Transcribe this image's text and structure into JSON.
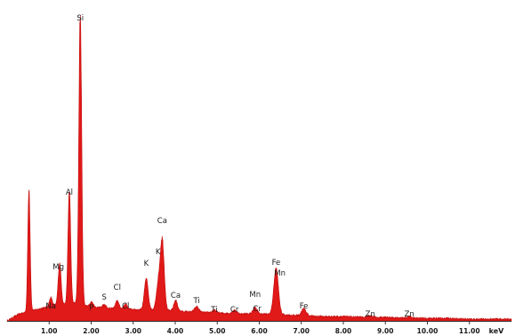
{
  "chart_data": {
    "type": "area",
    "title": "",
    "xlabel": "keV",
    "ylabel": "",
    "xlim": [
      0.0,
      12.0
    ],
    "ylim": [
      0,
      345
    ],
    "grid": false,
    "legend": "none",
    "color": "#e01919",
    "x_ticks": [
      {
        "value": 1.0,
        "label": "1.00"
      },
      {
        "value": 2.0,
        "label": "2.00"
      },
      {
        "value": 3.0,
        "label": "3.00"
      },
      {
        "value": 4.0,
        "label": "4.00"
      },
      {
        "value": 5.0,
        "label": "5.00"
      },
      {
        "value": 6.0,
        "label": "6.00"
      },
      {
        "value": 7.0,
        "label": "7.00"
      },
      {
        "value": 8.0,
        "label": "8.00"
      },
      {
        "value": 9.0,
        "label": "9.00"
      },
      {
        "value": 10.0,
        "label": "10.00"
      },
      {
        "value": 11.0,
        "label": "11.00"
      }
    ],
    "baseline": [
      [
        0.1,
        3
      ],
      [
        0.3,
        8
      ],
      [
        0.8,
        14
      ],
      [
        1.2,
        18
      ],
      [
        1.6,
        20
      ],
      [
        2.0,
        16
      ],
      [
        2.5,
        14
      ],
      [
        3.0,
        13
      ],
      [
        3.5,
        12
      ],
      [
        4.0,
        11
      ],
      [
        4.5,
        10
      ],
      [
        5.0,
        9
      ],
      [
        5.5,
        8
      ],
      [
        6.0,
        8
      ],
      [
        6.5,
        7
      ],
      [
        7.0,
        6
      ],
      [
        7.5,
        5
      ],
      [
        8.0,
        5
      ],
      [
        8.5,
        4
      ],
      [
        9.0,
        4
      ],
      [
        9.5,
        3
      ],
      [
        10.0,
        3
      ],
      [
        10.5,
        3
      ],
      [
        11.0,
        2
      ],
      [
        11.5,
        2
      ],
      [
        12.0,
        2
      ]
    ],
    "peaks": [
      {
        "x": 0.52,
        "height": 140,
        "width": 0.028
      },
      {
        "x": 1.04,
        "height": 10,
        "width": 0.035
      },
      {
        "x": 1.25,
        "height": 47,
        "width": 0.035
      },
      {
        "x": 1.48,
        "height": 128,
        "width": 0.032
      },
      {
        "x": 1.74,
        "height": 328,
        "width": 0.034
      },
      {
        "x": 2.01,
        "height": 5,
        "width": 0.04
      },
      {
        "x": 2.31,
        "height": 4,
        "width": 0.04
      },
      {
        "x": 2.62,
        "height": 9,
        "width": 0.04
      },
      {
        "x": 2.82,
        "height": 6,
        "width": 0.04
      },
      {
        "x": 3.31,
        "height": 36,
        "width": 0.045
      },
      {
        "x": 3.59,
        "height": 26,
        "width": 0.045
      },
      {
        "x": 3.69,
        "height": 80,
        "width": 0.048
      },
      {
        "x": 4.01,
        "height": 12,
        "width": 0.045
      },
      {
        "x": 4.51,
        "height": 6,
        "width": 0.05
      },
      {
        "x": 4.93,
        "height": 3,
        "width": 0.05
      },
      {
        "x": 5.41,
        "height": 4,
        "width": 0.05
      },
      {
        "x": 5.9,
        "height": 7,
        "width": 0.05
      },
      {
        "x": 6.4,
        "height": 52,
        "width": 0.055
      },
      {
        "x": 7.06,
        "height": 8,
        "width": 0.055
      },
      {
        "x": 8.64,
        "height": 2,
        "width": 0.06
      },
      {
        "x": 9.57,
        "height": 2,
        "width": 0.06
      }
    ],
    "annotations": [
      {
        "label": "Si",
        "x": 1.74,
        "y": 338
      },
      {
        "label": "Al",
        "x": 1.48,
        "y": 142
      },
      {
        "label": "Mg",
        "x": 1.22,
        "y": 58
      },
      {
        "label": "Na",
        "x": 1.04,
        "y": 14
      },
      {
        "label": "P",
        "x": 2.01,
        "y": 12
      },
      {
        "label": "S",
        "x": 2.31,
        "y": 24
      },
      {
        "label": "Cl",
        "x": 2.62,
        "y": 35
      },
      {
        "label": "Cl",
        "x": 2.82,
        "y": 14
      },
      {
        "label": "K",
        "x": 3.31,
        "y": 62
      },
      {
        "label": "K",
        "x": 3.59,
        "y": 75
      },
      {
        "label": "Ca",
        "x": 3.69,
        "y": 110
      },
      {
        "label": "Ca",
        "x": 4.01,
        "y": 26
      },
      {
        "label": "Ti",
        "x": 4.51,
        "y": 20
      },
      {
        "label": "Ti",
        "x": 4.93,
        "y": 10
      },
      {
        "label": "Cr",
        "x": 5.41,
        "y": 10
      },
      {
        "label": "Mn",
        "x": 5.9,
        "y": 27
      },
      {
        "label": "Cr",
        "x": 5.95,
        "y": 11
      },
      {
        "label": "Fe",
        "x": 6.4,
        "y": 63
      },
      {
        "label": "Mn",
        "x": 6.49,
        "y": 51
      },
      {
        "label": "Fe",
        "x": 7.06,
        "y": 14
      },
      {
        "label": "Zn",
        "x": 8.64,
        "y": 5
      },
      {
        "label": "Zn",
        "x": 9.57,
        "y": 5
      }
    ]
  }
}
